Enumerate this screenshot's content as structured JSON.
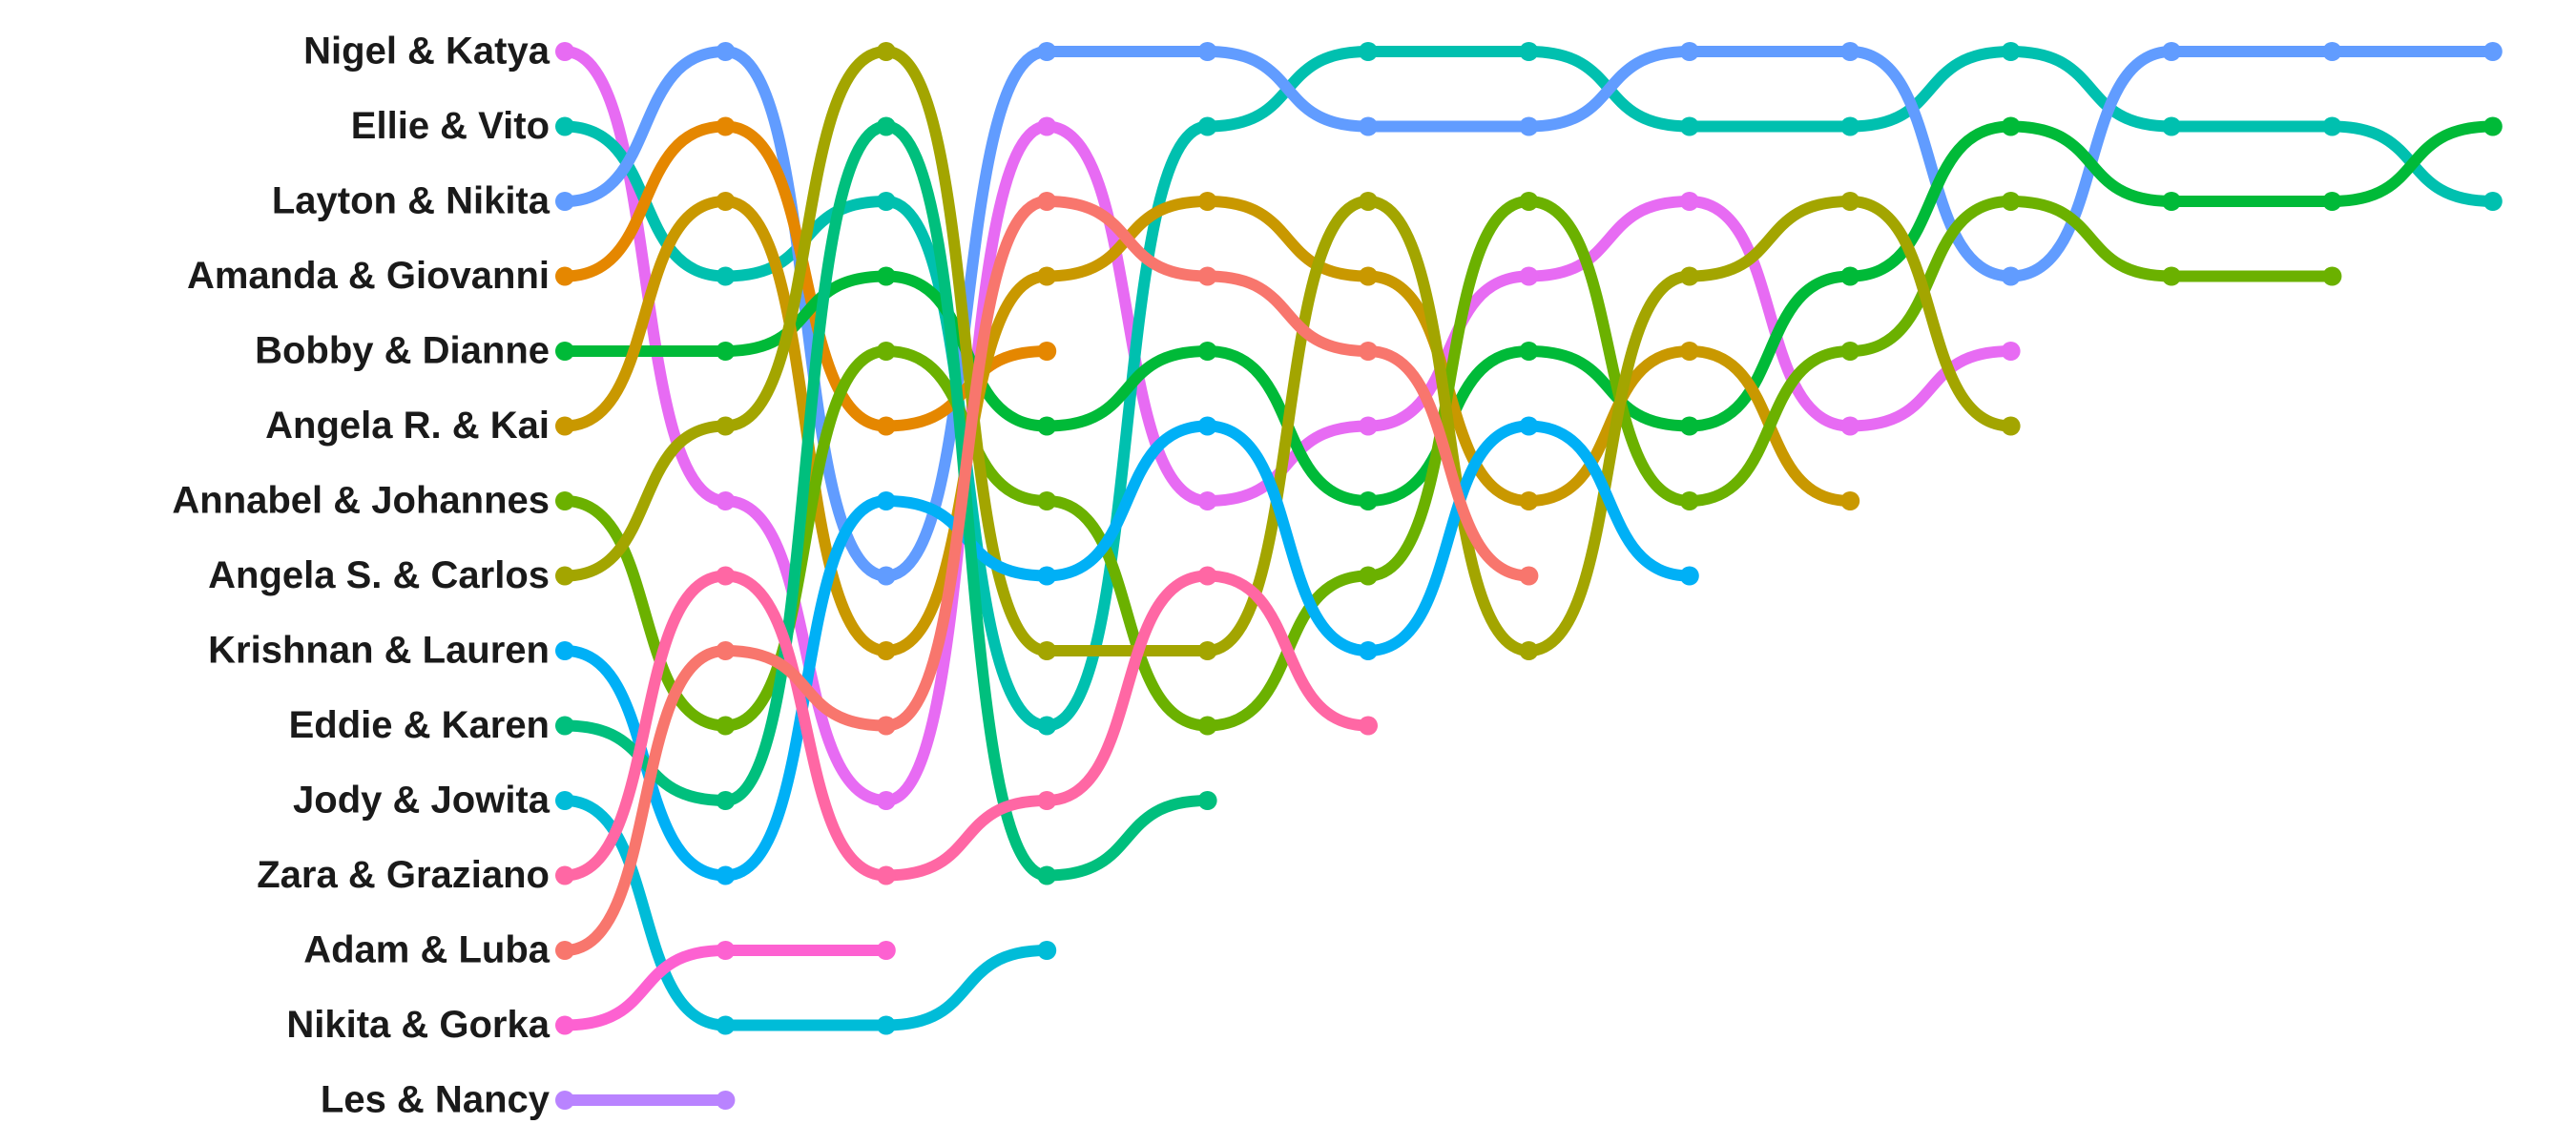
{
  "chart_data": {
    "type": "bump",
    "series": [
      {
        "name": "Nigel & Katya",
        "color": "#E76BF3",
        "values": [
          1,
          7,
          11,
          2,
          7,
          6,
          4,
          3,
          6,
          5,
          null,
          null,
          null
        ]
      },
      {
        "name": "Ellie & Vito",
        "color": "#00C0AF",
        "values": [
          2,
          4,
          3,
          10,
          2,
          1,
          1,
          2,
          2,
          1,
          2,
          2,
          3
        ]
      },
      {
        "name": "Layton & Nikita",
        "color": "#619CFF",
        "values": [
          3,
          1,
          8,
          1,
          1,
          2,
          2,
          1,
          1,
          4,
          1,
          1,
          1
        ]
      },
      {
        "name": "Amanda & Giovanni",
        "color": "#E58700",
        "values": [
          4,
          2,
          6,
          5,
          null,
          null,
          null,
          null,
          null,
          null,
          null,
          null,
          null
        ]
      },
      {
        "name": "Bobby & Dianne",
        "color": "#00BA38",
        "values": [
          5,
          5,
          4,
          6,
          5,
          7,
          5,
          6,
          4,
          2,
          3,
          3,
          2
        ]
      },
      {
        "name": "Angela R. & Kai",
        "color": "#C99800",
        "values": [
          6,
          3,
          9,
          4,
          3,
          4,
          7,
          5,
          7,
          null,
          null,
          null,
          null
        ]
      },
      {
        "name": "Annabel & Johannes",
        "color": "#6BB100",
        "values": [
          7,
          10,
          5,
          7,
          10,
          8,
          3,
          7,
          5,
          3,
          4,
          4,
          null
        ]
      },
      {
        "name": "Angela S. & Carlos",
        "color": "#A3A500",
        "values": [
          8,
          6,
          1,
          9,
          9,
          3,
          9,
          4,
          3,
          6,
          null,
          null,
          null
        ]
      },
      {
        "name": "Krishnan & Lauren",
        "color": "#00B0F6",
        "values": [
          9,
          12,
          7,
          8,
          6,
          9,
          6,
          8,
          null,
          null,
          null,
          null,
          null
        ]
      },
      {
        "name": "Eddie & Karen",
        "color": "#00BF7D",
        "values": [
          10,
          11,
          2,
          12,
          11,
          null,
          null,
          null,
          null,
          null,
          null,
          null,
          null
        ]
      },
      {
        "name": "Jody & Jowita",
        "color": "#00BCD8",
        "values": [
          11,
          14,
          14,
          13,
          null,
          null,
          null,
          null,
          null,
          null,
          null,
          null,
          null
        ]
      },
      {
        "name": "Zara & Graziano",
        "color": "#FF67A4",
        "values": [
          12,
          8,
          12,
          11,
          8,
          10,
          null,
          null,
          null,
          null,
          null,
          null,
          null
        ]
      },
      {
        "name": "Adam & Luba",
        "color": "#F8766D",
        "values": [
          13,
          9,
          10,
          3,
          4,
          5,
          8,
          null,
          null,
          null,
          null,
          null,
          null
        ]
      },
      {
        "name": "Nikita & Gorka",
        "color": "#FD61D1",
        "values": [
          14,
          13,
          13,
          null,
          null,
          null,
          null,
          null,
          null,
          null,
          null,
          null,
          null
        ]
      },
      {
        "name": "Les & Nancy",
        "color": "#B983FF",
        "values": [
          15,
          15,
          null,
          null,
          null,
          null,
          null,
          null,
          null,
          null,
          null,
          null,
          null
        ]
      }
    ]
  }
}
